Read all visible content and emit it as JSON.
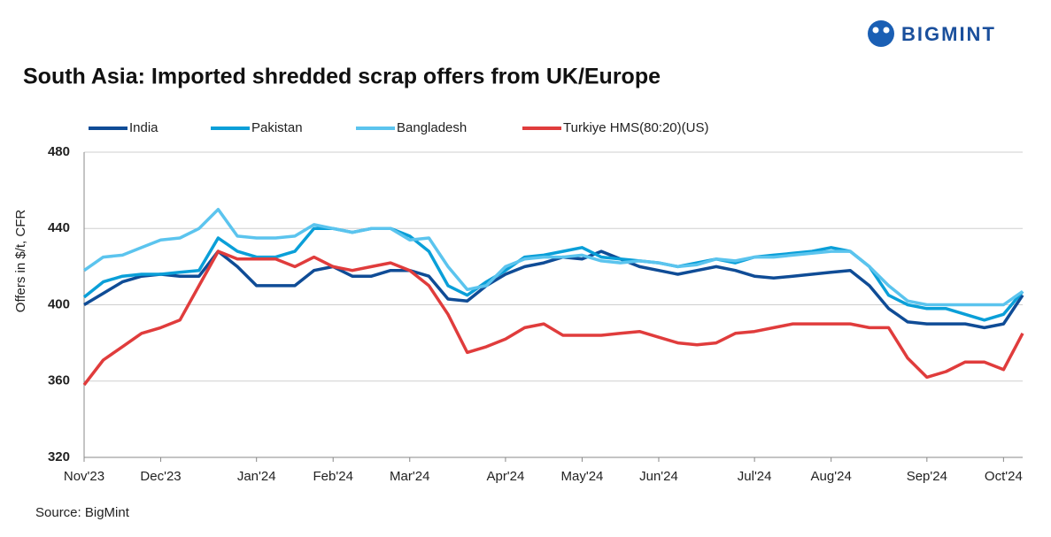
{
  "brand": "BIGMINT",
  "chart_data": {
    "type": "line",
    "title": "South Asia: Imported shredded scrap offers from UK/Europe",
    "y_label": "Offers in $/t, CFR",
    "source": "Source: BigMint",
    "categories": [
      "Nov'23",
      null,
      null,
      null,
      "Dec'23",
      null,
      null,
      null,
      null,
      "Jan'24",
      null,
      null,
      null,
      "Feb'24",
      null,
      null,
      null,
      "Mar'24",
      null,
      null,
      null,
      null,
      "Apr'24",
      null,
      null,
      null,
      "May'24",
      null,
      null,
      null,
      "Jun'24",
      null,
      null,
      null,
      null,
      "Jul'24",
      null,
      null,
      null,
      "Aug'24",
      null,
      null,
      null,
      null,
      "Sep'24",
      null,
      null,
      null,
      "Oct'24",
      null
    ],
    "ylim": [
      320,
      480
    ],
    "yticks": [
      320,
      360,
      400,
      440,
      480
    ],
    "grid": true,
    "series": [
      {
        "name": "India",
        "color": "#0f4c96",
        "values": [
          400,
          406,
          412,
          415,
          416,
          415,
          415,
          428,
          420,
          410,
          410,
          410,
          418,
          420,
          415,
          415,
          418,
          418,
          415,
          403,
          402,
          410,
          416,
          420,
          422,
          425,
          424,
          428,
          424,
          420,
          418,
          416,
          418,
          420,
          418,
          415,
          414,
          415,
          416,
          417,
          418,
          410,
          398,
          391,
          390,
          390,
          390,
          388,
          390,
          405
        ]
      },
      {
        "name": "Pakistan",
        "color": "#0a9fd8",
        "values": [
          404,
          412,
          415,
          416,
          416,
          417,
          418,
          435,
          428,
          425,
          425,
          428,
          440,
          440,
          438,
          440,
          440,
          436,
          428,
          410,
          405,
          412,
          418,
          425,
          426,
          428,
          430,
          425,
          424,
          423,
          422,
          420,
          422,
          424,
          422,
          425,
          426,
          427,
          428,
          430,
          428,
          420,
          405,
          400,
          398,
          398,
          395,
          392,
          395,
          407
        ]
      },
      {
        "name": "Bangladesh",
        "color": "#5bc4ee",
        "values": [
          418,
          425,
          426,
          430,
          434,
          435,
          440,
          450,
          436,
          435,
          435,
          436,
          442,
          440,
          438,
          440,
          440,
          434,
          435,
          420,
          408,
          410,
          420,
          424,
          425,
          425,
          426,
          423,
          422,
          423,
          422,
          420,
          421,
          424,
          423,
          425,
          425,
          426,
          427,
          428,
          428,
          420,
          410,
          402,
          400,
          400,
          400,
          400,
          400,
          407
        ]
      },
      {
        "name": "Turkiye HMS(80:20)(US)",
        "color": "#e03c3c",
        "values": [
          358,
          371,
          378,
          385,
          388,
          392,
          410,
          428,
          424,
          424,
          424,
          420,
          425,
          420,
          418,
          420,
          422,
          418,
          410,
          395,
          375,
          378,
          382,
          388,
          390,
          384,
          384,
          384,
          385,
          386,
          383,
          380,
          379,
          380,
          385,
          386,
          388,
          390,
          390,
          390,
          390,
          388,
          388,
          372,
          362,
          365,
          370,
          370,
          366,
          385
        ]
      }
    ]
  }
}
